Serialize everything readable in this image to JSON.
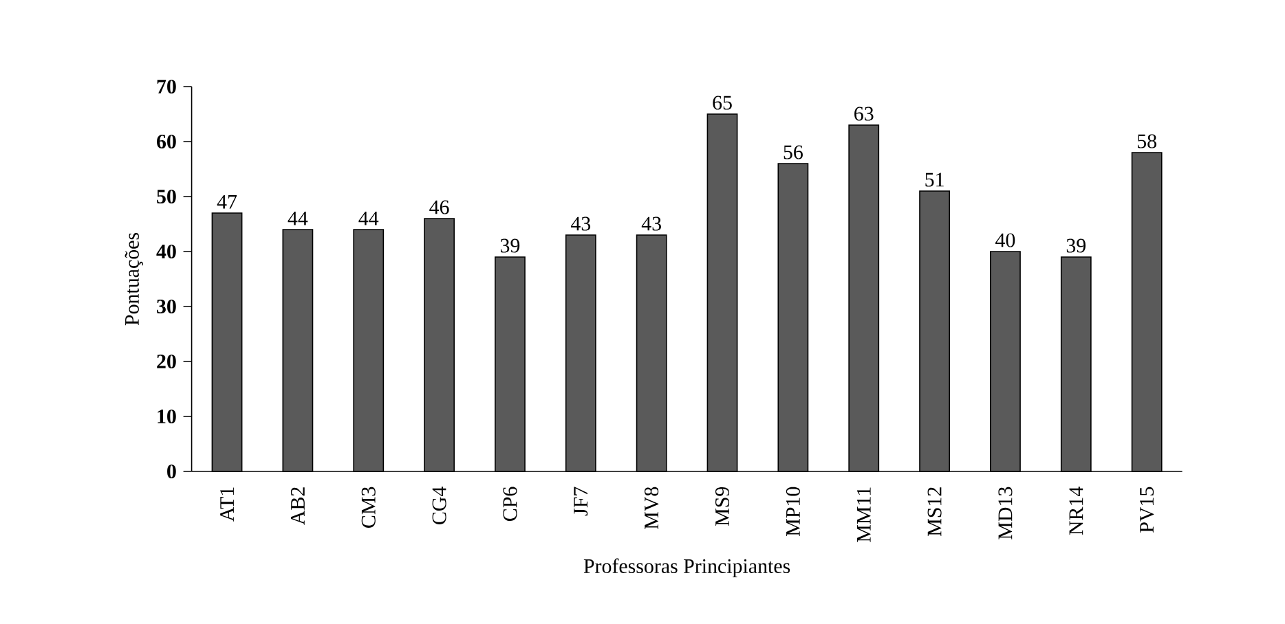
{
  "chart_data": {
    "type": "bar",
    "xlabel": "Professoras Principiantes",
    "ylabel": "Pontuações",
    "categories": [
      "AT1",
      "AB2",
      "CM3",
      "CG4",
      "CP6",
      "JF7",
      "MV8",
      "MS9",
      "MP10",
      "MM11",
      "MS12",
      "MD13",
      "NR14",
      "PV15"
    ],
    "values": [
      47,
      44,
      44,
      46,
      39,
      43,
      43,
      65,
      56,
      63,
      51,
      40,
      39,
      58
    ],
    "color": "#5a5a5a",
    "ylim": [
      0,
      70
    ],
    "yticks": [
      0,
      10,
      20,
      30,
      40,
      50,
      60,
      70
    ],
    "data_labels": true,
    "grid": false
  }
}
